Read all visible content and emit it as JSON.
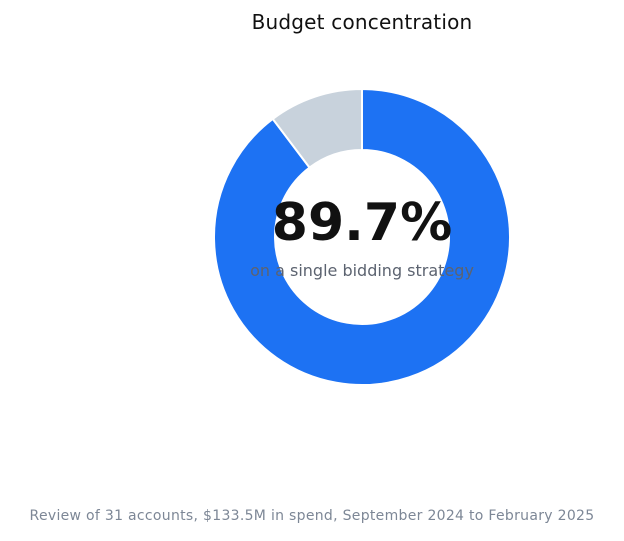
{
  "chart_data": {
    "type": "pie",
    "subtype": "donut",
    "title": "Budget concentration",
    "slices": [
      {
        "value": 89.7,
        "color": "#1d72f3"
      },
      {
        "value": 10.3,
        "color": "#c8d2dc"
      }
    ],
    "center_value": "89.7%",
    "center_caption": "on a single bidding strategy",
    "legend": "none"
  },
  "footnote": "Review of 31 accounts, $133.5M in spend, September 2024 to February 2025"
}
